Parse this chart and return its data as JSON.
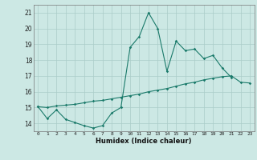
{
  "xlabel": "Humidex (Indice chaleur)",
  "x": [
    0,
    1,
    2,
    3,
    4,
    5,
    6,
    7,
    8,
    9,
    10,
    11,
    12,
    13,
    14,
    15,
    16,
    17,
    18,
    19,
    20,
    21,
    22,
    23
  ],
  "line1_y": [
    15.05,
    14.3,
    14.85,
    14.25,
    14.05,
    13.85,
    13.7,
    13.85,
    14.65,
    15.0,
    18.8,
    19.5,
    21.0,
    20.0,
    17.3,
    19.2,
    18.6,
    18.7,
    18.1,
    18.3,
    17.5,
    16.9,
    null,
    null
  ],
  "line2_y": [
    15.05,
    15.0,
    15.1,
    15.15,
    15.2,
    15.3,
    15.4,
    15.45,
    15.55,
    15.65,
    15.75,
    15.85,
    16.0,
    16.1,
    16.2,
    16.35,
    16.5,
    16.6,
    16.75,
    16.85,
    16.95,
    17.0,
    16.6,
    16.55
  ],
  "line_color": "#1a7a6a",
  "bg_color": "#cce8e4",
  "grid_color": "#aaccc8",
  "ylim": [
    13.5,
    21.5
  ],
  "xlim": [
    -0.5,
    23.5
  ],
  "yticks": [
    14,
    15,
    16,
    17,
    18,
    19,
    20,
    21
  ],
  "xticks": [
    0,
    1,
    2,
    3,
    4,
    5,
    6,
    7,
    8,
    9,
    10,
    11,
    12,
    13,
    14,
    15,
    16,
    17,
    18,
    19,
    20,
    21,
    22,
    23
  ]
}
